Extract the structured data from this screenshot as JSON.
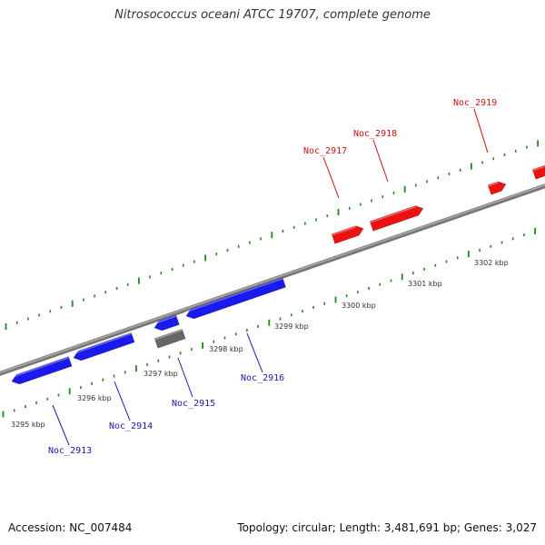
{
  "title": "Nitrosococcus oceani ATCC 19707, complete genome",
  "footer": {
    "accession": "Accession: NC_007484",
    "summary": "Topology: circular; Length: 3,481,691 bp; Genes: 3,027"
  },
  "colors": {
    "forward_gene": "#ee1111",
    "reverse_gene": "#1a1aee",
    "other_gene": "#666666",
    "backbone": "#888888",
    "tick": "#228822",
    "forward_label": "#cc1111",
    "reverse_label": "#1a1aaa"
  },
  "scale": {
    "unit": "kbp",
    "tick_labels": [
      "3295 kbp",
      "3296 kbp",
      "3297 kbp",
      "3298 kbp",
      "3299 kbp",
      "3300 kbp",
      "3301 kbp",
      "3302 kbp"
    ]
  },
  "genes": [
    {
      "label": "Noc_2913",
      "strand": "reverse",
      "type": "coding"
    },
    {
      "label": "Noc_2914",
      "strand": "reverse",
      "type": "coding"
    },
    {
      "label": "Noc_2915",
      "strand": "reverse",
      "type": "coding"
    },
    {
      "label": "",
      "strand": "reverse",
      "type": "other"
    },
    {
      "label": "Noc_2916",
      "strand": "reverse",
      "type": "coding"
    },
    {
      "label": "Noc_2917",
      "strand": "forward",
      "type": "coding"
    },
    {
      "label": "Noc_2918",
      "strand": "forward",
      "type": "coding"
    },
    {
      "label": "Noc_2919",
      "strand": "forward",
      "type": "coding"
    },
    {
      "label": "",
      "strand": "forward",
      "type": "coding"
    }
  ]
}
